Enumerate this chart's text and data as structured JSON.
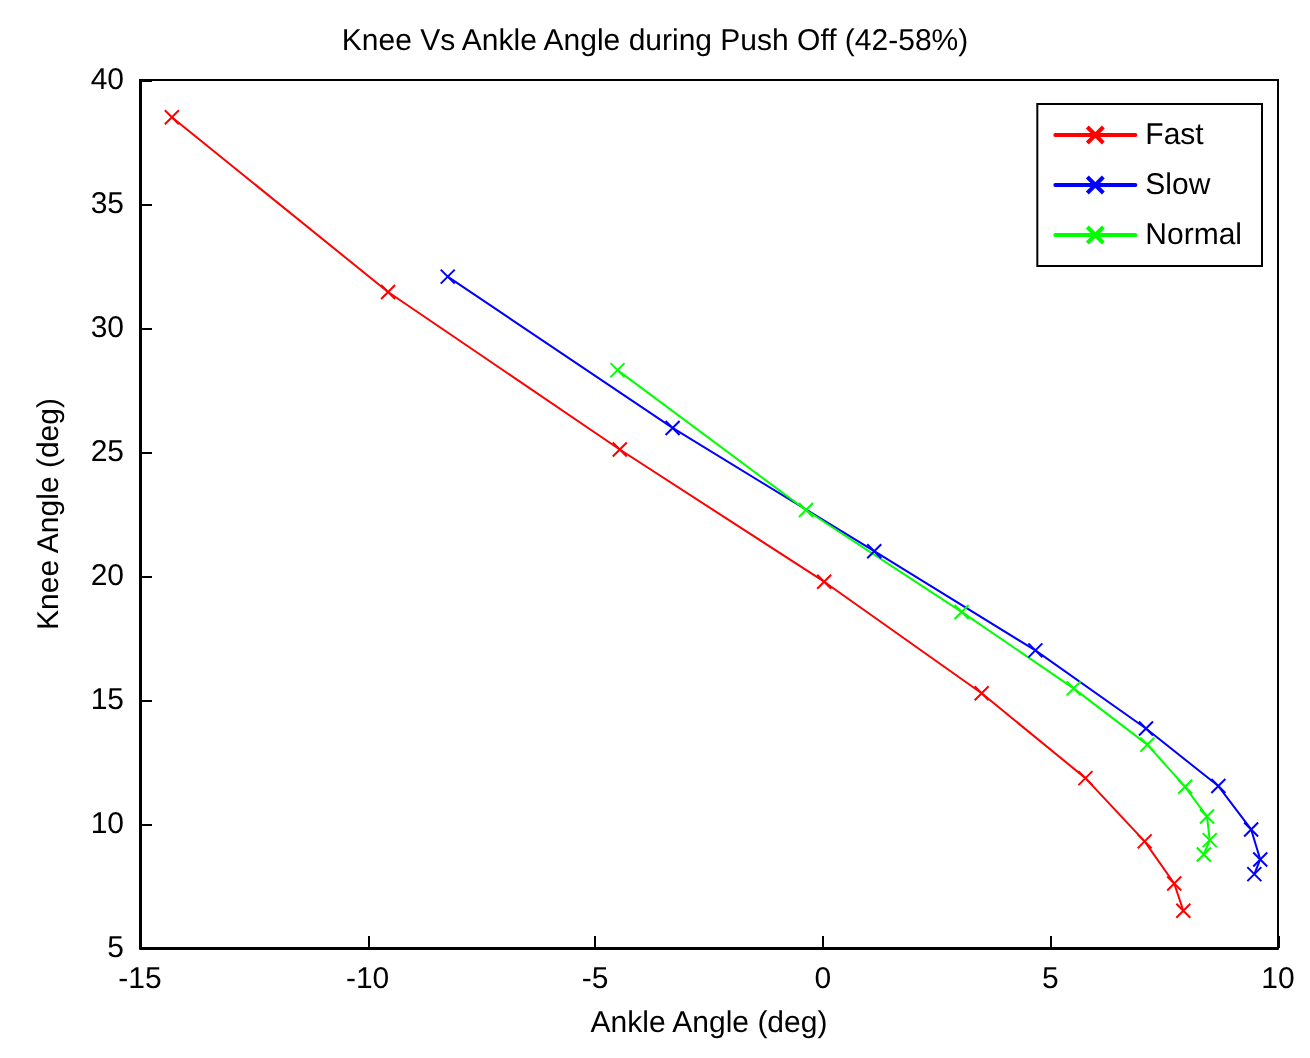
{
  "chart_data": {
    "type": "line",
    "title": "Knee Vs Ankle Angle during Push Off (42-58%)",
    "xlabel": "Ankle Angle (deg)",
    "ylabel": "Knee Angle (deg)",
    "xlim": [
      -15,
      10
    ],
    "xticks": [
      -15,
      -10,
      -5,
      0,
      5,
      10
    ],
    "ylim": [
      5,
      40
    ],
    "yticks": [
      5,
      10,
      15,
      20,
      25,
      30,
      35,
      40
    ],
    "grid": false,
    "legend": "top right",
    "marker": "cross",
    "line_style": "solid",
    "series": [
      {
        "name": "Fast",
        "color": "#ff0000",
        "x": [
          -14.3,
          -9.55,
          -4.46,
          0.03,
          3.49,
          5.77,
          7.07,
          7.72,
          7.92
        ],
        "values": [
          38.5,
          31.45,
          25.1,
          19.77,
          15.27,
          11.85,
          9.3,
          7.6,
          6.5
        ]
      },
      {
        "name": "Slow",
        "color": "#0000ff",
        "x": [
          -8.24,
          -3.3,
          1.13,
          4.67,
          7.1,
          8.69,
          9.41,
          9.61,
          9.48
        ],
        "values": [
          32.07,
          25.97,
          21.0,
          17.0,
          13.85,
          11.53,
          9.78,
          8.57,
          7.98
        ]
      },
      {
        "name": "Normal",
        "color": "#00ff00",
        "x": [
          -4.51,
          -0.37,
          3.05,
          5.51,
          7.13,
          7.96,
          8.44,
          8.5,
          8.37
        ],
        "values": [
          28.3,
          22.66,
          18.55,
          15.47,
          13.2,
          11.5,
          10.3,
          9.35,
          8.77
        ]
      }
    ]
  }
}
